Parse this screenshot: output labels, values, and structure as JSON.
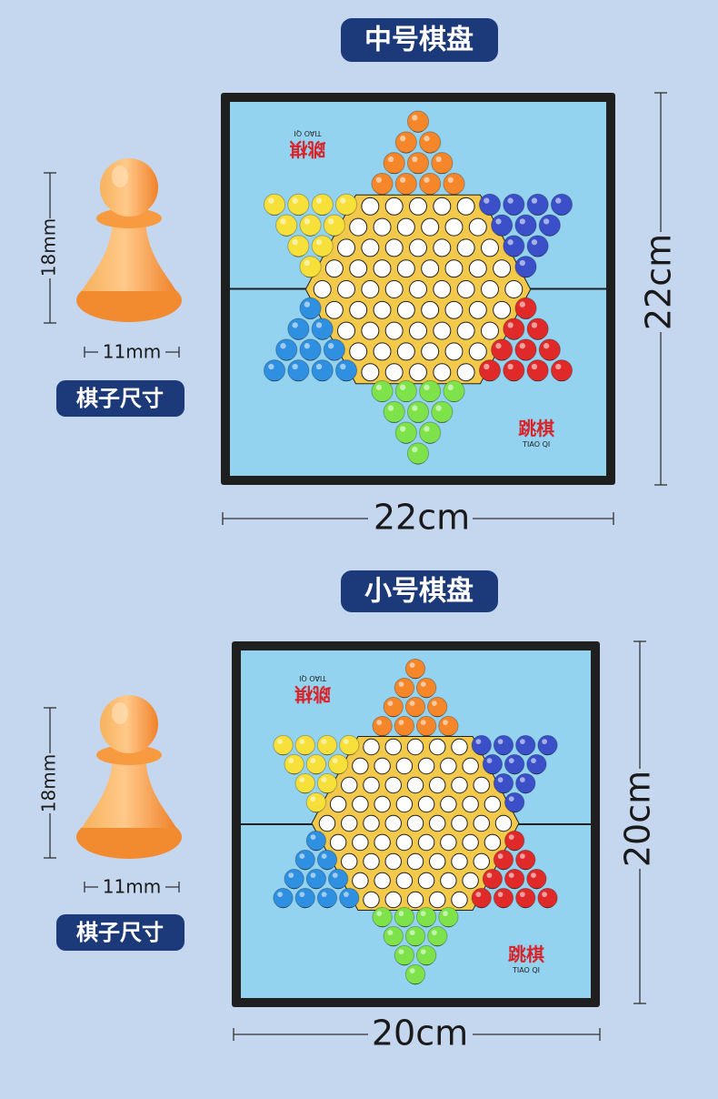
{
  "sections": [
    {
      "title": "中号棋盘",
      "piece_height": "18mm",
      "piece_width": "11mm",
      "piece_caption": "棋子尺寸",
      "board_height": "22cm",
      "board_width": "22cm",
      "board_label": "跳棋",
      "board_label_en": "TIAO QI"
    },
    {
      "title": "小号棋盘",
      "piece_height": "18mm",
      "piece_width": "11mm",
      "piece_caption": "棋子尺寸",
      "board_height": "20cm",
      "board_width": "20cm",
      "board_label": "跳棋",
      "board_label_en": "TIAO QI"
    }
  ]
}
